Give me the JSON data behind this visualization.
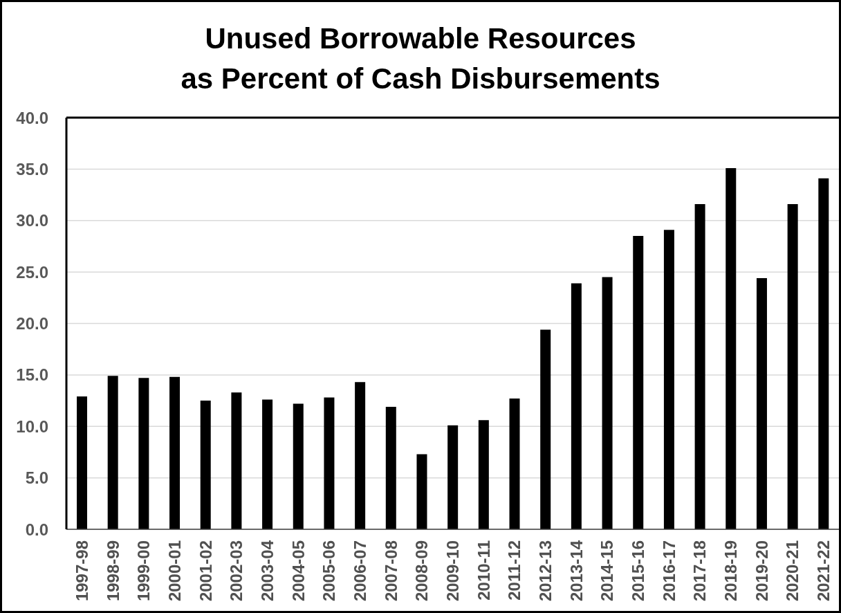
{
  "chart_data": {
    "type": "bar",
    "title": "Unused Borrowable Resources\nas Percent of Cash Disbursements",
    "categories": [
      "1997-98",
      "1998-99",
      "1999-00",
      "2000-01",
      "2001-02",
      "2002-03",
      "2003-04",
      "2004-05",
      "2005-06",
      "2006-07",
      "2007-08",
      "2008-09",
      "2009-10",
      "2010-11",
      "2011-12",
      "2012-13",
      "2013-14",
      "2014-15",
      "2015-16",
      "2016-17",
      "2017-18",
      "2018-19",
      "2019-20",
      "2020-21",
      "2021-22"
    ],
    "values": [
      12.9,
      14.9,
      14.7,
      14.8,
      12.5,
      13.3,
      12.6,
      12.2,
      12.8,
      14.3,
      11.9,
      7.3,
      10.1,
      10.6,
      12.7,
      19.4,
      23.9,
      24.5,
      28.5,
      29.1,
      31.6,
      35.1,
      24.4,
      31.6,
      34.1
    ],
    "color": "#000000",
    "ylim": [
      0,
      40
    ],
    "yticks": [
      {
        "value": 0,
        "label": "0.0"
      },
      {
        "value": 5,
        "label": "5.0"
      },
      {
        "value": 10,
        "label": "10.0"
      },
      {
        "value": 15,
        "label": "15.0"
      },
      {
        "value": 20,
        "label": "20.0"
      },
      {
        "value": 25,
        "label": "25.0"
      },
      {
        "value": 30,
        "label": "30.0"
      },
      {
        "value": 35,
        "label": "35.0"
      },
      {
        "value": 40,
        "label": "40.0"
      }
    ],
    "grid": "y"
  }
}
